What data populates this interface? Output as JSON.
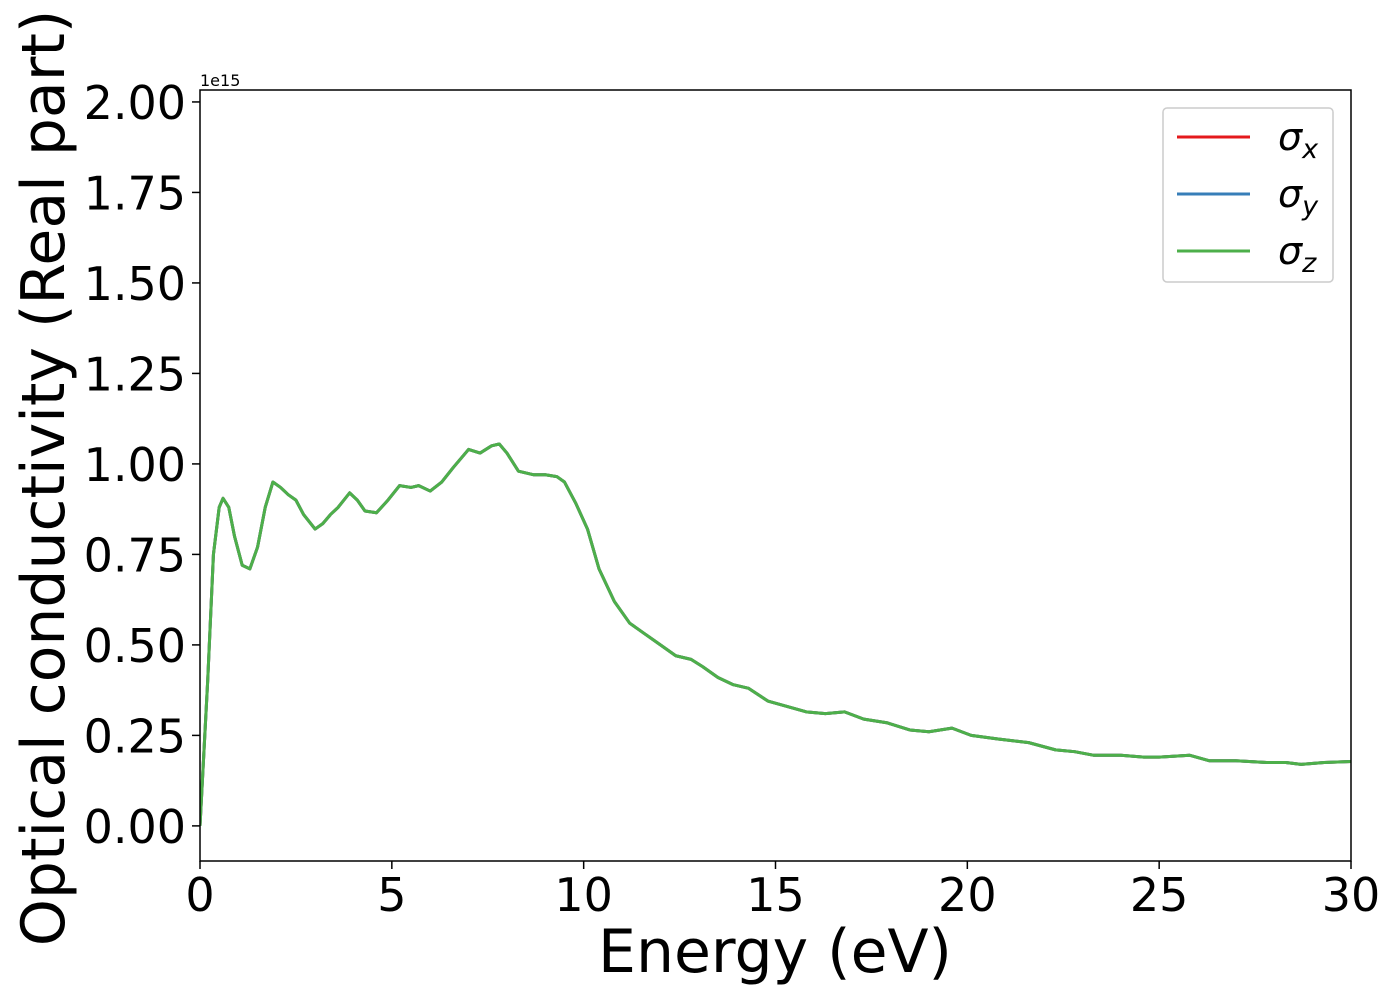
{
  "chart_data": {
    "type": "line",
    "xlabel": "Energy (eV)",
    "ylabel": "Optical conductivity (Real part)",
    "y_offset_label": "1e15",
    "x": [
      0,
      0.2,
      0.35,
      0.5,
      0.6,
      0.75,
      0.9,
      1.1,
      1.3,
      1.5,
      1.7,
      1.9,
      2.1,
      2.3,
      2.5,
      2.7,
      3.0,
      3.2,
      3.4,
      3.6,
      3.9,
      4.1,
      4.3,
      4.6,
      4.9,
      5.2,
      5.5,
      5.7,
      6.0,
      6.3,
      6.6,
      7.0,
      7.3,
      7.6,
      7.8,
      8.0,
      8.3,
      8.7,
      9.0,
      9.3,
      9.5,
      9.8,
      10.1,
      10.4,
      10.8,
      11.2,
      11.6,
      12.0,
      12.4,
      12.8,
      13.1,
      13.5,
      13.9,
      14.3,
      14.8,
      15.3,
      15.8,
      16.3,
      16.8,
      17.3,
      17.9,
      18.5,
      19.0,
      19.6,
      20.1,
      20.8,
      21.6,
      22.3,
      22.8,
      23.3,
      24.0,
      24.6,
      25.0,
      25.8,
      26.3,
      27.0,
      27.8,
      28.3,
      28.7,
      29.3,
      30
    ],
    "series": [
      {
        "name": "σx",
        "color": "#e41a1c",
        "values": [
          0,
          0.4,
          0.75,
          0.88,
          0.905,
          0.88,
          0.8,
          0.72,
          0.71,
          0.77,
          0.88,
          0.95,
          0.935,
          0.915,
          0.9,
          0.86,
          0.82,
          0.835,
          0.86,
          0.88,
          0.92,
          0.9,
          0.87,
          0.865,
          0.9,
          0.94,
          0.935,
          0.94,
          0.925,
          0.95,
          0.99,
          1.04,
          1.03,
          1.05,
          1.055,
          1.03,
          0.98,
          0.97,
          0.97,
          0.965,
          0.95,
          0.89,
          0.82,
          0.71,
          0.62,
          0.56,
          0.53,
          0.5,
          0.47,
          0.46,
          0.44,
          0.41,
          0.39,
          0.38,
          0.345,
          0.33,
          0.315,
          0.31,
          0.315,
          0.295,
          0.285,
          0.265,
          0.26,
          0.27,
          0.25,
          0.24,
          0.23,
          0.21,
          0.205,
          0.195,
          0.195,
          0.19,
          0.19,
          0.195,
          0.18,
          0.18,
          0.175,
          0.175,
          0.17,
          0.175,
          0.178
        ]
      },
      {
        "name": "σy",
        "color": "#377eb8",
        "values": [
          0,
          0.4,
          0.75,
          0.88,
          0.905,
          0.88,
          0.8,
          0.72,
          0.71,
          0.77,
          0.88,
          0.95,
          0.935,
          0.915,
          0.9,
          0.86,
          0.82,
          0.835,
          0.86,
          0.88,
          0.92,
          0.9,
          0.87,
          0.865,
          0.9,
          0.94,
          0.935,
          0.94,
          0.925,
          0.95,
          0.99,
          1.04,
          1.03,
          1.05,
          1.055,
          1.03,
          0.98,
          0.97,
          0.97,
          0.965,
          0.95,
          0.89,
          0.82,
          0.71,
          0.62,
          0.56,
          0.53,
          0.5,
          0.47,
          0.46,
          0.44,
          0.41,
          0.39,
          0.38,
          0.345,
          0.33,
          0.315,
          0.31,
          0.315,
          0.295,
          0.285,
          0.265,
          0.26,
          0.27,
          0.25,
          0.24,
          0.23,
          0.21,
          0.205,
          0.195,
          0.195,
          0.19,
          0.19,
          0.195,
          0.18,
          0.18,
          0.175,
          0.175,
          0.17,
          0.175,
          0.178
        ]
      },
      {
        "name": "σz",
        "color": "#4daf4a",
        "values": [
          0,
          0.4,
          0.75,
          0.88,
          0.905,
          0.88,
          0.8,
          0.72,
          0.71,
          0.77,
          0.88,
          0.95,
          0.935,
          0.915,
          0.9,
          0.86,
          0.82,
          0.835,
          0.86,
          0.88,
          0.92,
          0.9,
          0.87,
          0.865,
          0.9,
          0.94,
          0.935,
          0.94,
          0.925,
          0.95,
          0.99,
          1.04,
          1.03,
          1.05,
          1.055,
          1.03,
          0.98,
          0.97,
          0.97,
          0.965,
          0.95,
          0.89,
          0.82,
          0.71,
          0.62,
          0.56,
          0.53,
          0.5,
          0.47,
          0.46,
          0.44,
          0.41,
          0.39,
          0.38,
          0.345,
          0.33,
          0.315,
          0.31,
          0.315,
          0.295,
          0.285,
          0.265,
          0.26,
          0.27,
          0.25,
          0.24,
          0.23,
          0.21,
          0.205,
          0.195,
          0.195,
          0.19,
          0.19,
          0.195,
          0.18,
          0.18,
          0.175,
          0.175,
          0.17,
          0.175,
          0.178
        ]
      }
    ],
    "xlim": [
      0,
      30
    ],
    "xticks": [
      0,
      5,
      10,
      15,
      20,
      25,
      30
    ],
    "ylim": [
      -0.097,
      2.033
    ],
    "yticks": [
      {
        "value": 0,
        "label": "0.00"
      },
      {
        "value": 0.25,
        "label": "0.25"
      },
      {
        "value": 0.5,
        "label": "0.50"
      },
      {
        "value": 0.75,
        "label": "0.75"
      },
      {
        "value": 1,
        "label": "1.00"
      },
      {
        "value": 1.25,
        "label": "1.25"
      },
      {
        "value": 1.5,
        "label": "1.50"
      },
      {
        "value": 1.75,
        "label": "1.75"
      },
      {
        "value": 2,
        "label": "2.00"
      }
    ],
    "grid": false,
    "legend": "upper right"
  }
}
